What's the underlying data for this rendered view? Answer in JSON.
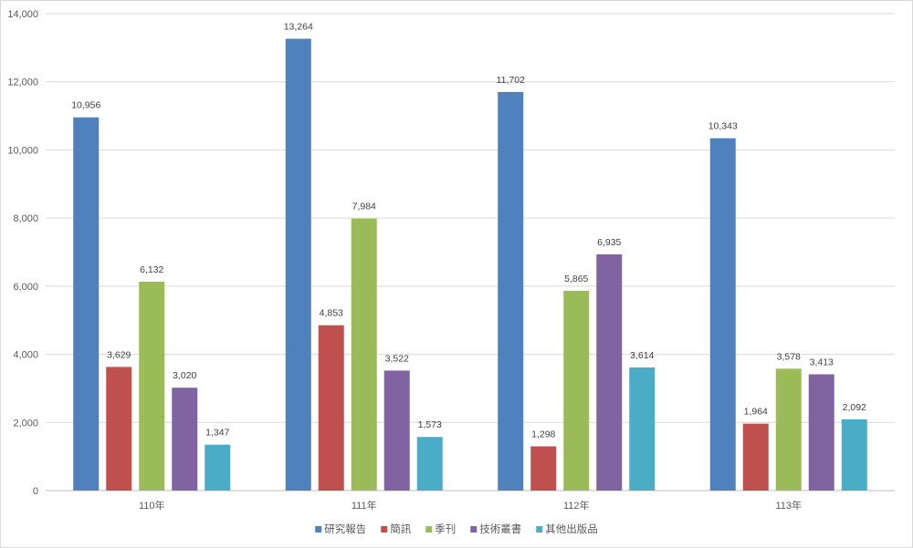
{
  "chart_data": {
    "type": "bar",
    "title": "",
    "xlabel": "",
    "ylabel": "",
    "categories": [
      "110年",
      "111年",
      "112年",
      "113年"
    ],
    "ylim": [
      0,
      14000
    ],
    "yticks": [
      0,
      2000,
      4000,
      6000,
      8000,
      10000,
      12000,
      14000
    ],
    "ytick_labels": [
      "0",
      "2,000",
      "4,000",
      "6,000",
      "8,000",
      "10,000",
      "12,000",
      "14,000"
    ],
    "grid": true,
    "legend_position": "bottom",
    "series": [
      {
        "name": "研究報告",
        "color": "#4F81BD",
        "values": [
          10956,
          13264,
          11702,
          10343
        ],
        "labels": [
          "10,956",
          "13,264",
          "11,702",
          "10,343"
        ]
      },
      {
        "name": "簡訊",
        "color": "#C0504D",
        "values": [
          3629,
          4853,
          1298,
          1964
        ],
        "labels": [
          "3,629",
          "4,853",
          "1,298",
          "1,964"
        ]
      },
      {
        "name": "季刊",
        "color": "#9BBB59",
        "values": [
          6132,
          7984,
          5865,
          3578
        ],
        "labels": [
          "6,132",
          "7,984",
          "5,865",
          "3,578"
        ]
      },
      {
        "name": "技術叢書",
        "color": "#8064A2",
        "values": [
          3020,
          3522,
          6935,
          3413
        ],
        "labels": [
          "3,020",
          "3,522",
          "6,935",
          "3,413"
        ]
      },
      {
        "name": "其他出版品",
        "color": "#4BACC6",
        "values": [
          1347,
          1573,
          3614,
          2092
        ],
        "labels": [
          "1,347",
          "1,573",
          "3,614",
          "2,092"
        ]
      }
    ]
  }
}
